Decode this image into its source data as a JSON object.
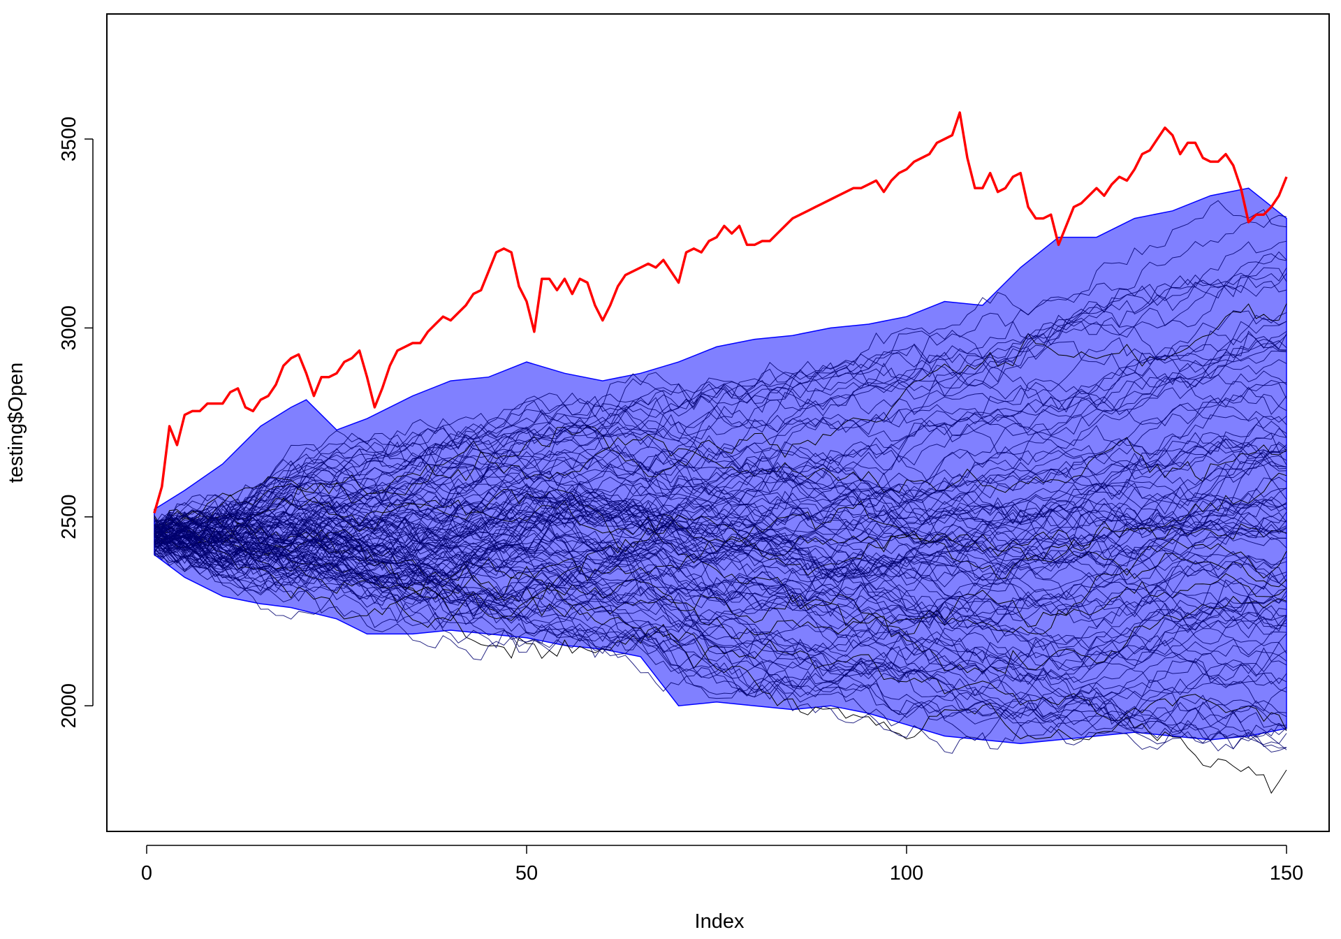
{
  "chart_data": {
    "type": "line",
    "title": "",
    "xlabel": "Index",
    "ylabel": "testing$Open",
    "xlim": [
      -5,
      155
    ],
    "ylim": [
      1680,
      3850
    ],
    "xticks": [
      0,
      50,
      100,
      150
    ],
    "yticks": [
      2000,
      2500,
      3000,
      3500
    ],
    "grid": false,
    "legend": "none",
    "colors": {
      "band_fill": "#8080ff",
      "band_edge": "#0000ff",
      "paths": "#000000",
      "inner_paths": "#00006e",
      "actual": "#ff0000"
    },
    "band": {
      "name": "",
      "x": [
        1,
        5,
        10,
        15,
        19,
        21,
        25,
        29,
        35,
        40,
        45,
        50,
        55,
        60,
        65,
        70,
        75,
        80,
        85,
        90,
        95,
        100,
        105,
        110,
        115,
        120,
        125,
        130,
        135,
        140,
        145,
        150
      ],
      "upper": [
        2520,
        2570,
        2640,
        2740,
        2790,
        2810,
        2730,
        2760,
        2820,
        2860,
        2870,
        2910,
        2880,
        2860,
        2880,
        2910,
        2950,
        2970,
        2980,
        3000,
        3010,
        3030,
        3070,
        3060,
        3160,
        3240,
        3240,
        3290,
        3310,
        3350,
        3370,
        3290
      ],
      "lower": [
        2400,
        2340,
        2290,
        2270,
        2260,
        2250,
        2230,
        2190,
        2190,
        2200,
        2190,
        2180,
        2160,
        2150,
        2130,
        2000,
        2010,
        2000,
        1990,
        2000,
        1980,
        1950,
        1920,
        1910,
        1900,
        1910,
        1920,
        1930,
        1920,
        1910,
        1920,
        1940
      ]
    },
    "series": [
      {
        "name": "",
        "role": "actual",
        "x": [
          1,
          2,
          3,
          4,
          5,
          6,
          7,
          8,
          9,
          10,
          11,
          12,
          13,
          14,
          15,
          16,
          17,
          18,
          19,
          20,
          21,
          22,
          23,
          24,
          25,
          26,
          27,
          28,
          29,
          30,
          31,
          32,
          33,
          34,
          35,
          36,
          37,
          38,
          39,
          40,
          41,
          42,
          43,
          44,
          45,
          46,
          47,
          48,
          49,
          50,
          51,
          52,
          53,
          54,
          55,
          56,
          57,
          58,
          59,
          60,
          61,
          62,
          63,
          64,
          65,
          66,
          67,
          68,
          69,
          70,
          71,
          72,
          73,
          74,
          75,
          76,
          77,
          78,
          79,
          80,
          81,
          82,
          83,
          84,
          85,
          86,
          87,
          88,
          89,
          90,
          91,
          92,
          93,
          94,
          95,
          96,
          97,
          98,
          99,
          100,
          101,
          102,
          103,
          104,
          105,
          106,
          107,
          108,
          109,
          110,
          111,
          112,
          113,
          114,
          115,
          116,
          117,
          118,
          119,
          120,
          121,
          122,
          123,
          124,
          125,
          126,
          127,
          128,
          129,
          130,
          131,
          132,
          133,
          134,
          135,
          136,
          137,
          138,
          139,
          140,
          141,
          142,
          143,
          144,
          145,
          146,
          147,
          148,
          149,
          150
        ],
        "values": [
          2510,
          2580,
          2740,
          2690,
          2770,
          2780,
          2780,
          2800,
          2800,
          2800,
          2830,
          2840,
          2790,
          2780,
          2810,
          2820,
          2850,
          2900,
          2920,
          2930,
          2880,
          2820,
          2870,
          2870,
          2880,
          2910,
          2920,
          2940,
          2870,
          2790,
          2840,
          2900,
          2940,
          2950,
          2960,
          2960,
          2990,
          3010,
          3030,
          3020,
          3040,
          3060,
          3090,
          3100,
          3150,
          3200,
          3210,
          3200,
          3110,
          3070,
          2990,
          3130,
          3130,
          3100,
          3130,
          3090,
          3130,
          3120,
          3060,
          3020,
          3060,
          3110,
          3140,
          3150,
          3160,
          3170,
          3160,
          3180,
          3150,
          3120,
          3200,
          3210,
          3200,
          3230,
          3240,
          3270,
          3250,
          3270,
          3220,
          3220,
          3230,
          3230,
          3250,
          3270,
          3290,
          3300,
          3310,
          3320,
          3330,
          3340,
          3350,
          3360,
          3370,
          3370,
          3380,
          3390,
          3360,
          3390,
          3410,
          3420,
          3440,
          3450,
          3460,
          3490,
          3500,
          3510,
          3570,
          3450,
          3370,
          3370,
          3410,
          3360,
          3370,
          3400,
          3410,
          3320,
          3290,
          3290,
          3300,
          3220,
          3270,
          3320,
          3330,
          3350,
          3370,
          3350,
          3380,
          3400,
          3390,
          3420,
          3460,
          3470,
          3500,
          3530,
          3510,
          3460,
          3490,
          3490,
          3450,
          3440,
          3440,
          3460,
          3430,
          3370,
          3280,
          3300,
          3300,
          3320,
          3350,
          3400
        ]
      }
    ]
  }
}
